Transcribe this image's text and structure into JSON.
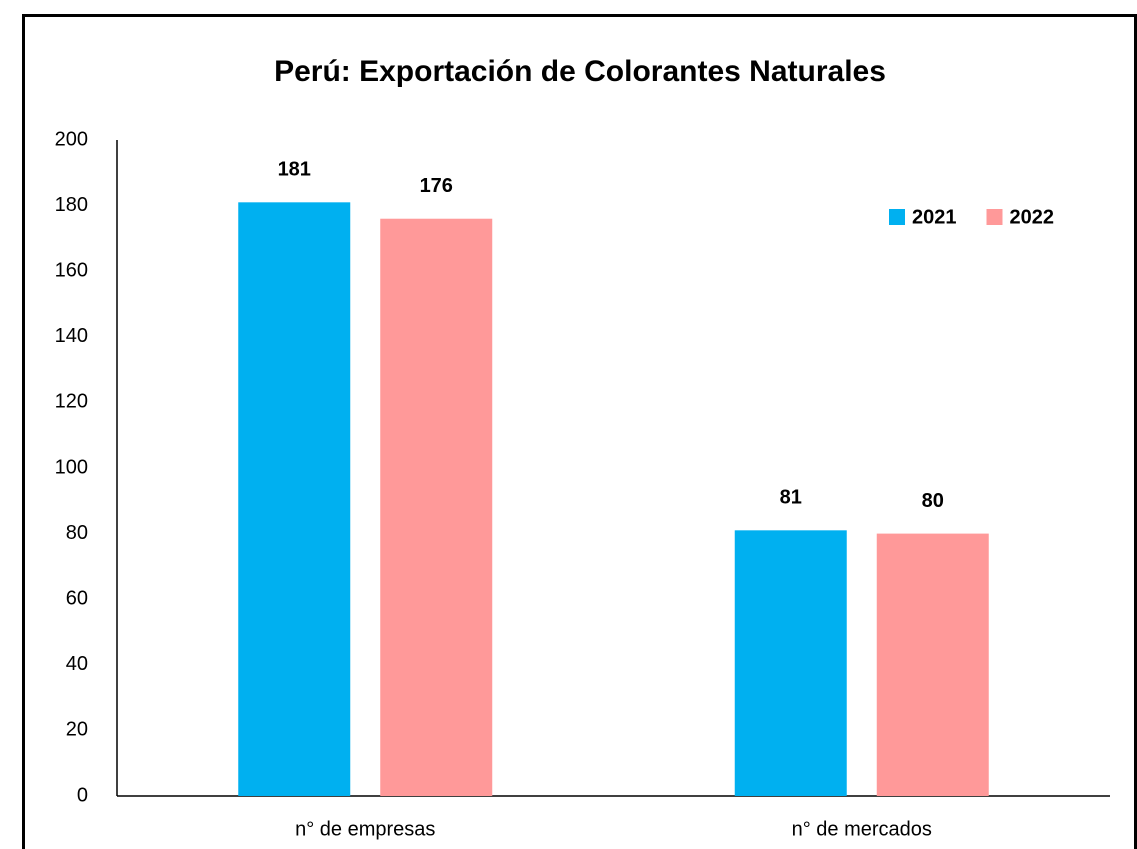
{
  "chart_data": {
    "type": "bar",
    "title": "Perú: Exportación de Colorantes Naturales",
    "categories": [
      "n° de empresas",
      "n° de mercados"
    ],
    "series": [
      {
        "name": "2021",
        "color": "#00b0f0",
        "values": [
          181,
          81
        ]
      },
      {
        "name": "2022",
        "color": "#ff9999",
        "values": [
          176,
          80
        ]
      }
    ],
    "ylim": [
      0,
      200
    ],
    "yticks": [
      0,
      20,
      40,
      60,
      80,
      100,
      120,
      140,
      160,
      180,
      200
    ],
    "grid": false,
    "legend": "upper right"
  }
}
